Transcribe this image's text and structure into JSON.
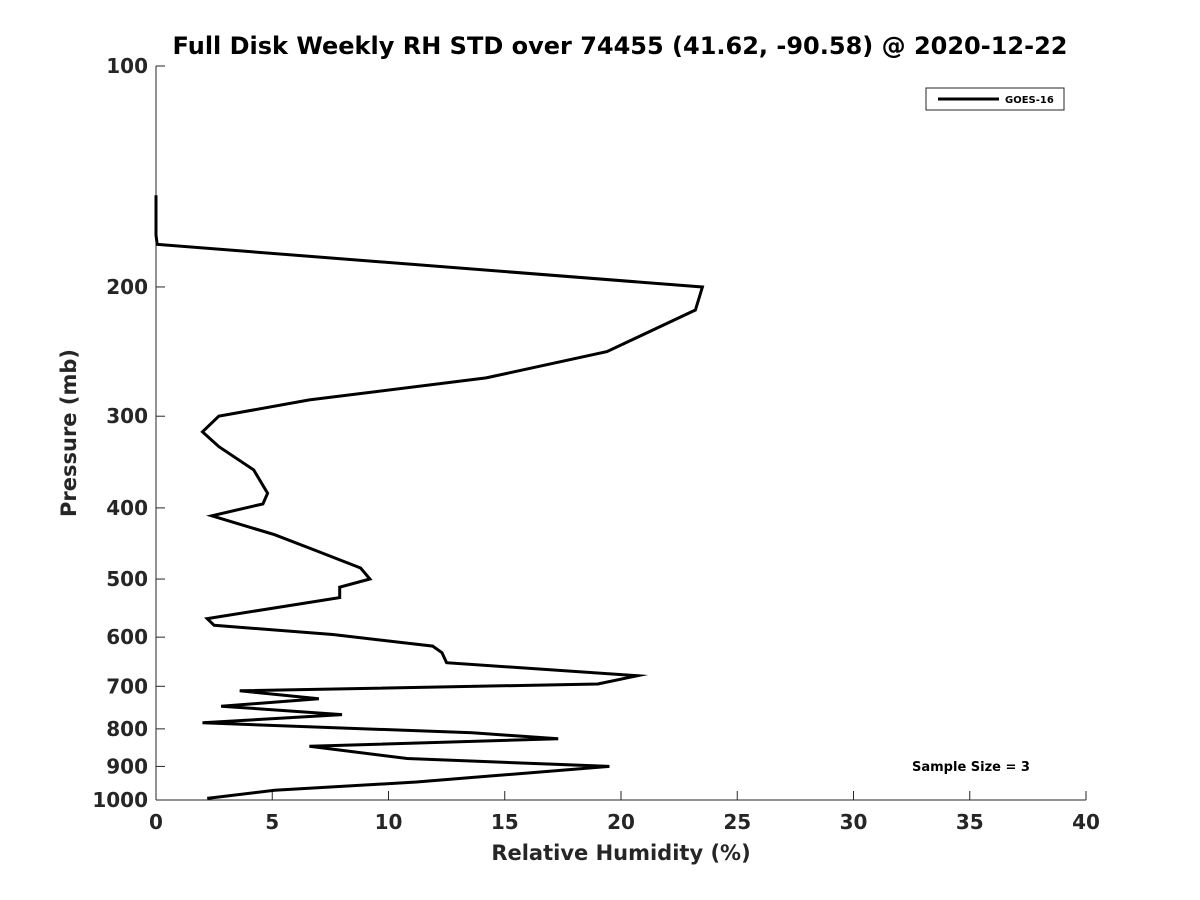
{
  "chart_data": {
    "type": "line",
    "title": "Full Disk Weekly RH STD over 74455 (41.62, -90.58) @ 2020-12-22",
    "xlabel": "Relative Humidity (%)",
    "ylabel": "Pressure (mb)",
    "xlim": [
      0,
      40
    ],
    "ylim": [
      100,
      1000
    ],
    "y_scale": "log",
    "y_reversed": true,
    "x_ticks": [
      0,
      5,
      10,
      15,
      20,
      25,
      30,
      35,
      40
    ],
    "y_ticks": [
      100,
      200,
      300,
      400,
      500,
      600,
      700,
      800,
      900,
      1000
    ],
    "grid": false,
    "legend_position": "top-right",
    "annotation": "Sample Size = 3",
    "series": [
      {
        "name": "GOES-16",
        "color": "#000000",
        "x": [
          0.0,
          0.0,
          0.0,
          0.05,
          23.5,
          23.2,
          19.4,
          14.2,
          6.6,
          2.7,
          2.0,
          2.7,
          4.2,
          4.8,
          4.6,
          2.4,
          5.1,
          6.7,
          8.8,
          9.2,
          7.9,
          7.9,
          2.2,
          2.5,
          7.6,
          11.9,
          12.3,
          12.5,
          20.7,
          19.0,
          3.6,
          7.0,
          2.8,
          8.0,
          2.0,
          13.6,
          17.3,
          6.6,
          10.8,
          19.5,
          14.5,
          11.2,
          5.1,
          2.2
        ],
        "y": [
          150,
          160,
          170,
          175,
          200,
          215,
          245,
          266,
          285,
          300,
          315,
          330,
          355,
          382,
          395,
          410,
          435,
          455,
          483,
          500,
          513,
          530,
          566,
          578,
          595,
          617,
          630,
          650,
          677,
          695,
          710,
          728,
          745,
          765,
          785,
          810,
          825,
          845,
          878,
          900,
          927,
          945,
          970,
          995
        ]
      }
    ]
  }
}
